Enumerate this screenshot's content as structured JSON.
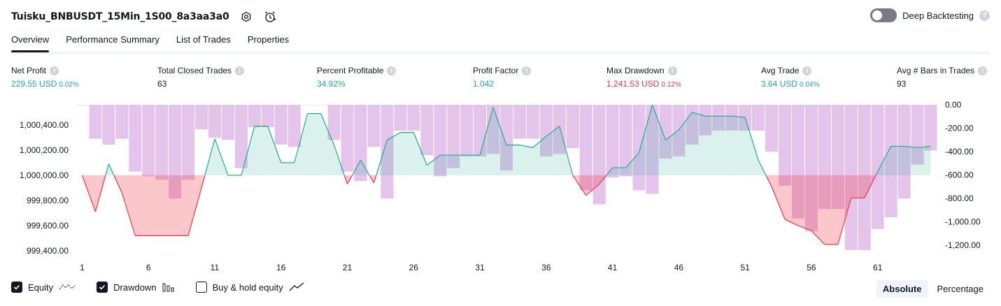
{
  "header": {
    "strategy_name": "Tuisku_BNBUSDT_15Min_1S00_8a3aa3a0",
    "deep_backtesting_label": "Deep Backtesting",
    "deep_backtesting_on": false
  },
  "tabs": [
    {
      "label": "Overview",
      "active": true
    },
    {
      "label": "Performance Summary",
      "active": false
    },
    {
      "label": "List of Trades",
      "active": false
    },
    {
      "label": "Properties",
      "active": false
    }
  ],
  "metrics": {
    "net_profit": {
      "label": "Net Profit",
      "value": "229.55 USD",
      "pct": "0.02%",
      "color": "#22ab94"
    },
    "total_closed_trades": {
      "label": "Total Closed Trades",
      "value": "63"
    },
    "percent_profitable": {
      "label": "Percent Profitable",
      "value": "34.92%",
      "color": "#22ab94"
    },
    "profit_factor": {
      "label": "Profit Factor",
      "value": "1.042",
      "color": "#22ab94"
    },
    "max_drawdown": {
      "label": "Max Drawdown",
      "value": "1,241.53 USD",
      "pct": "0.12%",
      "color": "#f23645"
    },
    "avg_trade": {
      "label": "Avg Trade",
      "value": "3.64 USD",
      "pct": "0.04%",
      "color": "#22ab94"
    },
    "avg_bars": {
      "label": "Avg # Bars in Trades",
      "value": "93"
    }
  },
  "chart_data": {
    "type": "line",
    "x": [
      1,
      2,
      3,
      4,
      5,
      6,
      7,
      8,
      9,
      10,
      11,
      12,
      13,
      14,
      15,
      16,
      17,
      18,
      19,
      20,
      21,
      22,
      23,
      24,
      25,
      26,
      27,
      28,
      29,
      30,
      31,
      32,
      33,
      34,
      35,
      36,
      37,
      38,
      39,
      40,
      41,
      42,
      43,
      44,
      45,
      46,
      47,
      48,
      49,
      50,
      51,
      52,
      53,
      54,
      55,
      56,
      57,
      58,
      59,
      60,
      61,
      62,
      63,
      64,
      65
    ],
    "x_ticks": [
      "1",
      "6",
      "11",
      "16",
      "21",
      "26",
      "31",
      "36",
      "41",
      "46",
      "51",
      "56",
      "61"
    ],
    "equity_baseline": 1000000,
    "series": [
      {
        "name": "Equity",
        "axis": "left",
        "values": [
          1000000,
          999710,
          1000090,
          999860,
          999520,
          999520,
          999520,
          999520,
          999520,
          999900,
          1000290,
          1000000,
          1000000,
          1000390,
          1000390,
          1000100,
          1000100,
          1000490,
          1000490,
          1000240,
          999930,
          1000120,
          999940,
          1000280,
          1000340,
          1000340,
          1000080,
          1000160,
          1000160,
          1000160,
          1000160,
          1000540,
          1000240,
          1000240,
          1000220,
          1000310,
          1000390,
          1000000,
          999840,
          999930,
          1000060,
          1000060,
          1000180,
          1000560,
          1000280,
          1000360,
          1000500,
          1000470,
          1000470,
          1000470,
          1000460,
          1000120,
          999910,
          999650,
          999600,
          999560,
          999450,
          999450,
          999820,
          999820,
          1000030,
          1000230,
          1000230,
          1000220,
          1000230
        ],
        "color_up": "#22ab94",
        "color_down": "#f23645"
      },
      {
        "name": "Drawdown",
        "axis": "right",
        "values": [
          0,
          -290,
          -340,
          -290,
          -570,
          -610,
          -640,
          -800,
          -640,
          -210,
          -280,
          -300,
          -540,
          -190,
          -190,
          -340,
          -360,
          0,
          0,
          -300,
          -570,
          -650,
          -360,
          -800,
          -220,
          -220,
          -430,
          -610,
          -540,
          -440,
          -440,
          -420,
          -560,
          -290,
          -290,
          -440,
          -420,
          -370,
          -730,
          -850,
          -620,
          -610,
          -730,
          -760,
          -460,
          -440,
          -340,
          -260,
          -220,
          -220,
          -220,
          -220,
          -400,
          -690,
          -970,
          -1080,
          -890,
          -890,
          -1240,
          -1240,
          -1060,
          -960,
          -800,
          -510,
          -390
        ],
        "color": "#ce93d8"
      }
    ],
    "y_left": {
      "ticks": [
        "1,000,400.00",
        "1,000,200.00",
        "1,000,000.00",
        "999,800.00",
        "999,600.00",
        "999,400.00"
      ],
      "range": [
        999350,
        1000560
      ]
    },
    "y_right": {
      "ticks": [
        "0.00",
        "-200.00",
        "-400.00",
        "-600.00",
        "-800.00",
        "-1,000.00",
        "-1,200.00"
      ],
      "range": [
        -1300,
        0
      ]
    },
    "grid": false
  },
  "legend": {
    "equity": {
      "label": "Equity",
      "checked": true
    },
    "drawdown": {
      "label": "Drawdown",
      "checked": true
    },
    "buy_hold": {
      "label": "Buy & hold equity",
      "checked": false
    }
  },
  "modes": {
    "absolute": "Absolute",
    "percentage": "Percentage",
    "active": "absolute"
  }
}
